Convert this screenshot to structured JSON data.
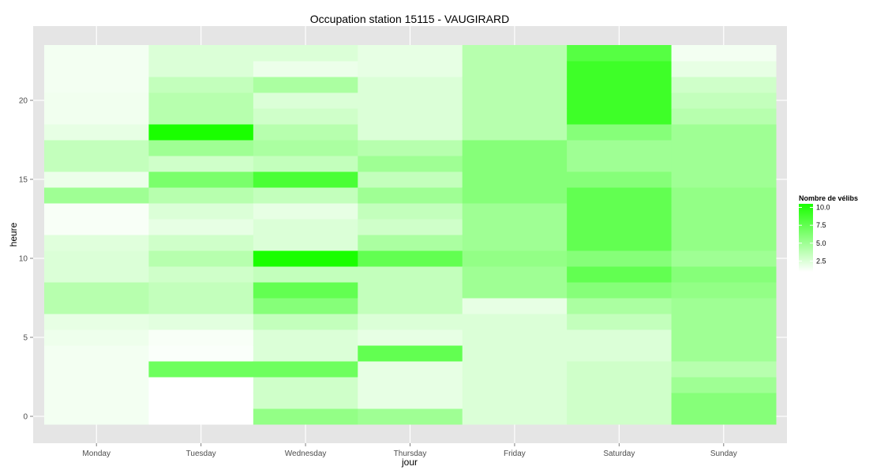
{
  "chart_data": {
    "type": "heatmap",
    "title": "Occupation station 15115 - VAUGIRARD",
    "xlabel": "jour",
    "ylabel": "heure",
    "days": [
      "Monday",
      "Tuesday",
      "Wednesday",
      "Thursday",
      "Friday",
      "Saturday",
      "Sunday"
    ],
    "hours": [
      0,
      1,
      2,
      3,
      4,
      5,
      6,
      7,
      8,
      9,
      10,
      11,
      12,
      13,
      14,
      15,
      16,
      17,
      18,
      19,
      20,
      21,
      22,
      23
    ],
    "ylim": [
      -0.5,
      23.5
    ],
    "yticks": [
      0,
      5,
      10,
      15,
      20
    ],
    "ytick_labels": [
      "0",
      "5",
      "10",
      "15",
      "20"
    ],
    "grid": true,
    "legend": {
      "title": "Nombre de vélibs",
      "position": "right",
      "breaks": [
        10.0,
        7.5,
        5.0,
        2.5
      ],
      "labels": [
        "10.0",
        "7.5",
        "5.0",
        "2.5"
      ],
      "range": [
        1,
        10.5
      ],
      "low_color": "#ffffff",
      "high_color": "#1aff00"
    },
    "values": [
      [
        1.5,
        1.5,
        1.5,
        1.5,
        1.5,
        1.7,
        2.0,
        4.0,
        4.0,
        2.5,
        2.5,
        2.3,
        1.3,
        1.3,
        5.0,
        1.8,
        3.5,
        3.5,
        2.0,
        1.6,
        1.6,
        1.5,
        1.5,
        1.5
      ],
      [
        1.0,
        1.0,
        1.0,
        7.0,
        1.2,
        1.3,
        2.2,
        3.5,
        3.5,
        3.0,
        4.0,
        3.0,
        2.0,
        2.5,
        4.0,
        6.5,
        3.0,
        5.0,
        10.5,
        4.0,
        4.0,
        3.5,
        2.5,
        2.5
      ],
      [
        5.5,
        3.0,
        3.0,
        7.0,
        2.5,
        2.5,
        3.5,
        6.0,
        7.5,
        3.5,
        10.5,
        2.5,
        2.5,
        2.0,
        3.5,
        8.5,
        3.5,
        4.5,
        4.0,
        3.0,
        2.5,
        4.5,
        1.8,
        2.5
      ],
      [
        5.0,
        2.0,
        2.0,
        2.0,
        7.5,
        2.0,
        2.5,
        3.5,
        3.5,
        3.5,
        7.5,
        4.5,
        3.0,
        3.5,
        5.0,
        3.5,
        5.0,
        4.0,
        2.5,
        2.5,
        2.5,
        2.5,
        2.0,
        2.0
      ],
      [
        2.5,
        2.5,
        2.5,
        2.5,
        2.5,
        2.5,
        2.5,
        2.0,
        5.0,
        5.0,
        5.5,
        5.0,
        5.0,
        5.0,
        6.0,
        6.0,
        6.0,
        6.0,
        4.0,
        4.0,
        4.0,
        4.0,
        4.0,
        4.0
      ],
      [
        3.0,
        3.0,
        3.0,
        3.0,
        2.5,
        2.5,
        3.5,
        4.5,
        6.0,
        7.5,
        6.0,
        7.5,
        7.5,
        7.5,
        7.5,
        6.0,
        5.0,
        5.0,
        6.0,
        9.0,
        9.0,
        9.0,
        9.0,
        8.0
      ],
      [
        6.0,
        6.0,
        5.0,
        4.0,
        5.0,
        5.0,
        5.0,
        5.0,
        5.5,
        6.0,
        5.0,
        5.5,
        5.5,
        5.5,
        5.5,
        5.0,
        5.0,
        5.0,
        5.0,
        4.0,
        3.5,
        3.0,
        2.0,
        1.5
      ]
    ]
  }
}
